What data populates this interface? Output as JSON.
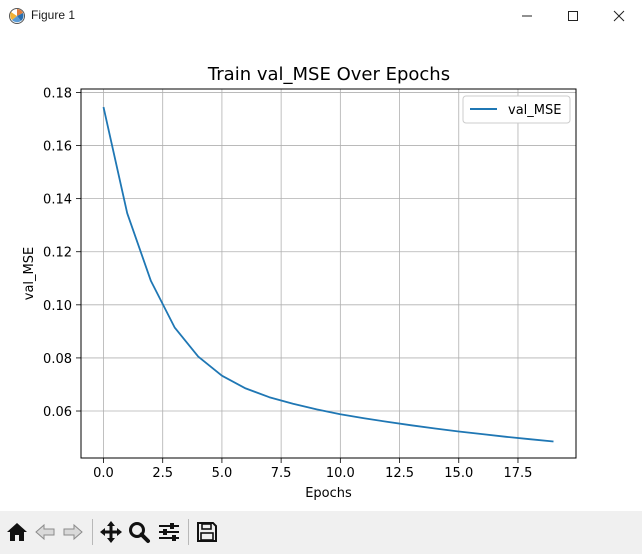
{
  "window": {
    "title": "Figure 1",
    "icons": [
      "matplotlib-app-icon",
      "minimize-icon",
      "maximize-icon",
      "close-icon"
    ]
  },
  "toolbar": {
    "buttons": [
      "home-icon",
      "back-arrow-icon",
      "forward-arrow-icon",
      "pan-move-icon",
      "zoom-magnifier-icon",
      "configure-subplots-icon",
      "save-floppy-icon"
    ]
  },
  "chart_data": {
    "type": "line",
    "title": "Train val_MSE Over Epochs",
    "xlabel": "Epochs",
    "ylabel": "val_MSE",
    "xlim": [
      -0.95,
      19.95
    ],
    "ylim": [
      0.0423,
      0.1813
    ],
    "xticks": [
      0,
      2.5,
      5,
      7.5,
      10,
      12.5,
      15,
      17.5
    ],
    "xtick_labels": [
      "0.0",
      "2.5",
      "5.0",
      "7.5",
      "10.0",
      "12.5",
      "15.0",
      "17.5"
    ],
    "yticks": [
      0.06,
      0.08,
      0.1,
      0.12,
      0.14,
      0.16,
      0.18
    ],
    "ytick_labels": [
      "0.06",
      "0.08",
      "0.10",
      "0.12",
      "0.14",
      "0.16",
      "0.18"
    ],
    "grid": true,
    "legend_position": "top-right",
    "series": [
      {
        "name": "val_MSE",
        "color": "#1f77b4",
        "x": [
          0,
          1,
          2,
          3,
          4,
          5,
          6,
          7,
          8,
          9,
          10,
          11,
          12,
          13,
          14,
          15,
          16,
          17,
          18,
          19
        ],
        "values": [
          0.1745,
          0.1345,
          0.109,
          0.0915,
          0.0805,
          0.0733,
          0.0685,
          0.0652,
          0.0627,
          0.0606,
          0.0588,
          0.0573,
          0.0559,
          0.0546,
          0.0534,
          0.0523,
          0.0513,
          0.0503,
          0.0494,
          0.0485
        ]
      }
    ]
  }
}
